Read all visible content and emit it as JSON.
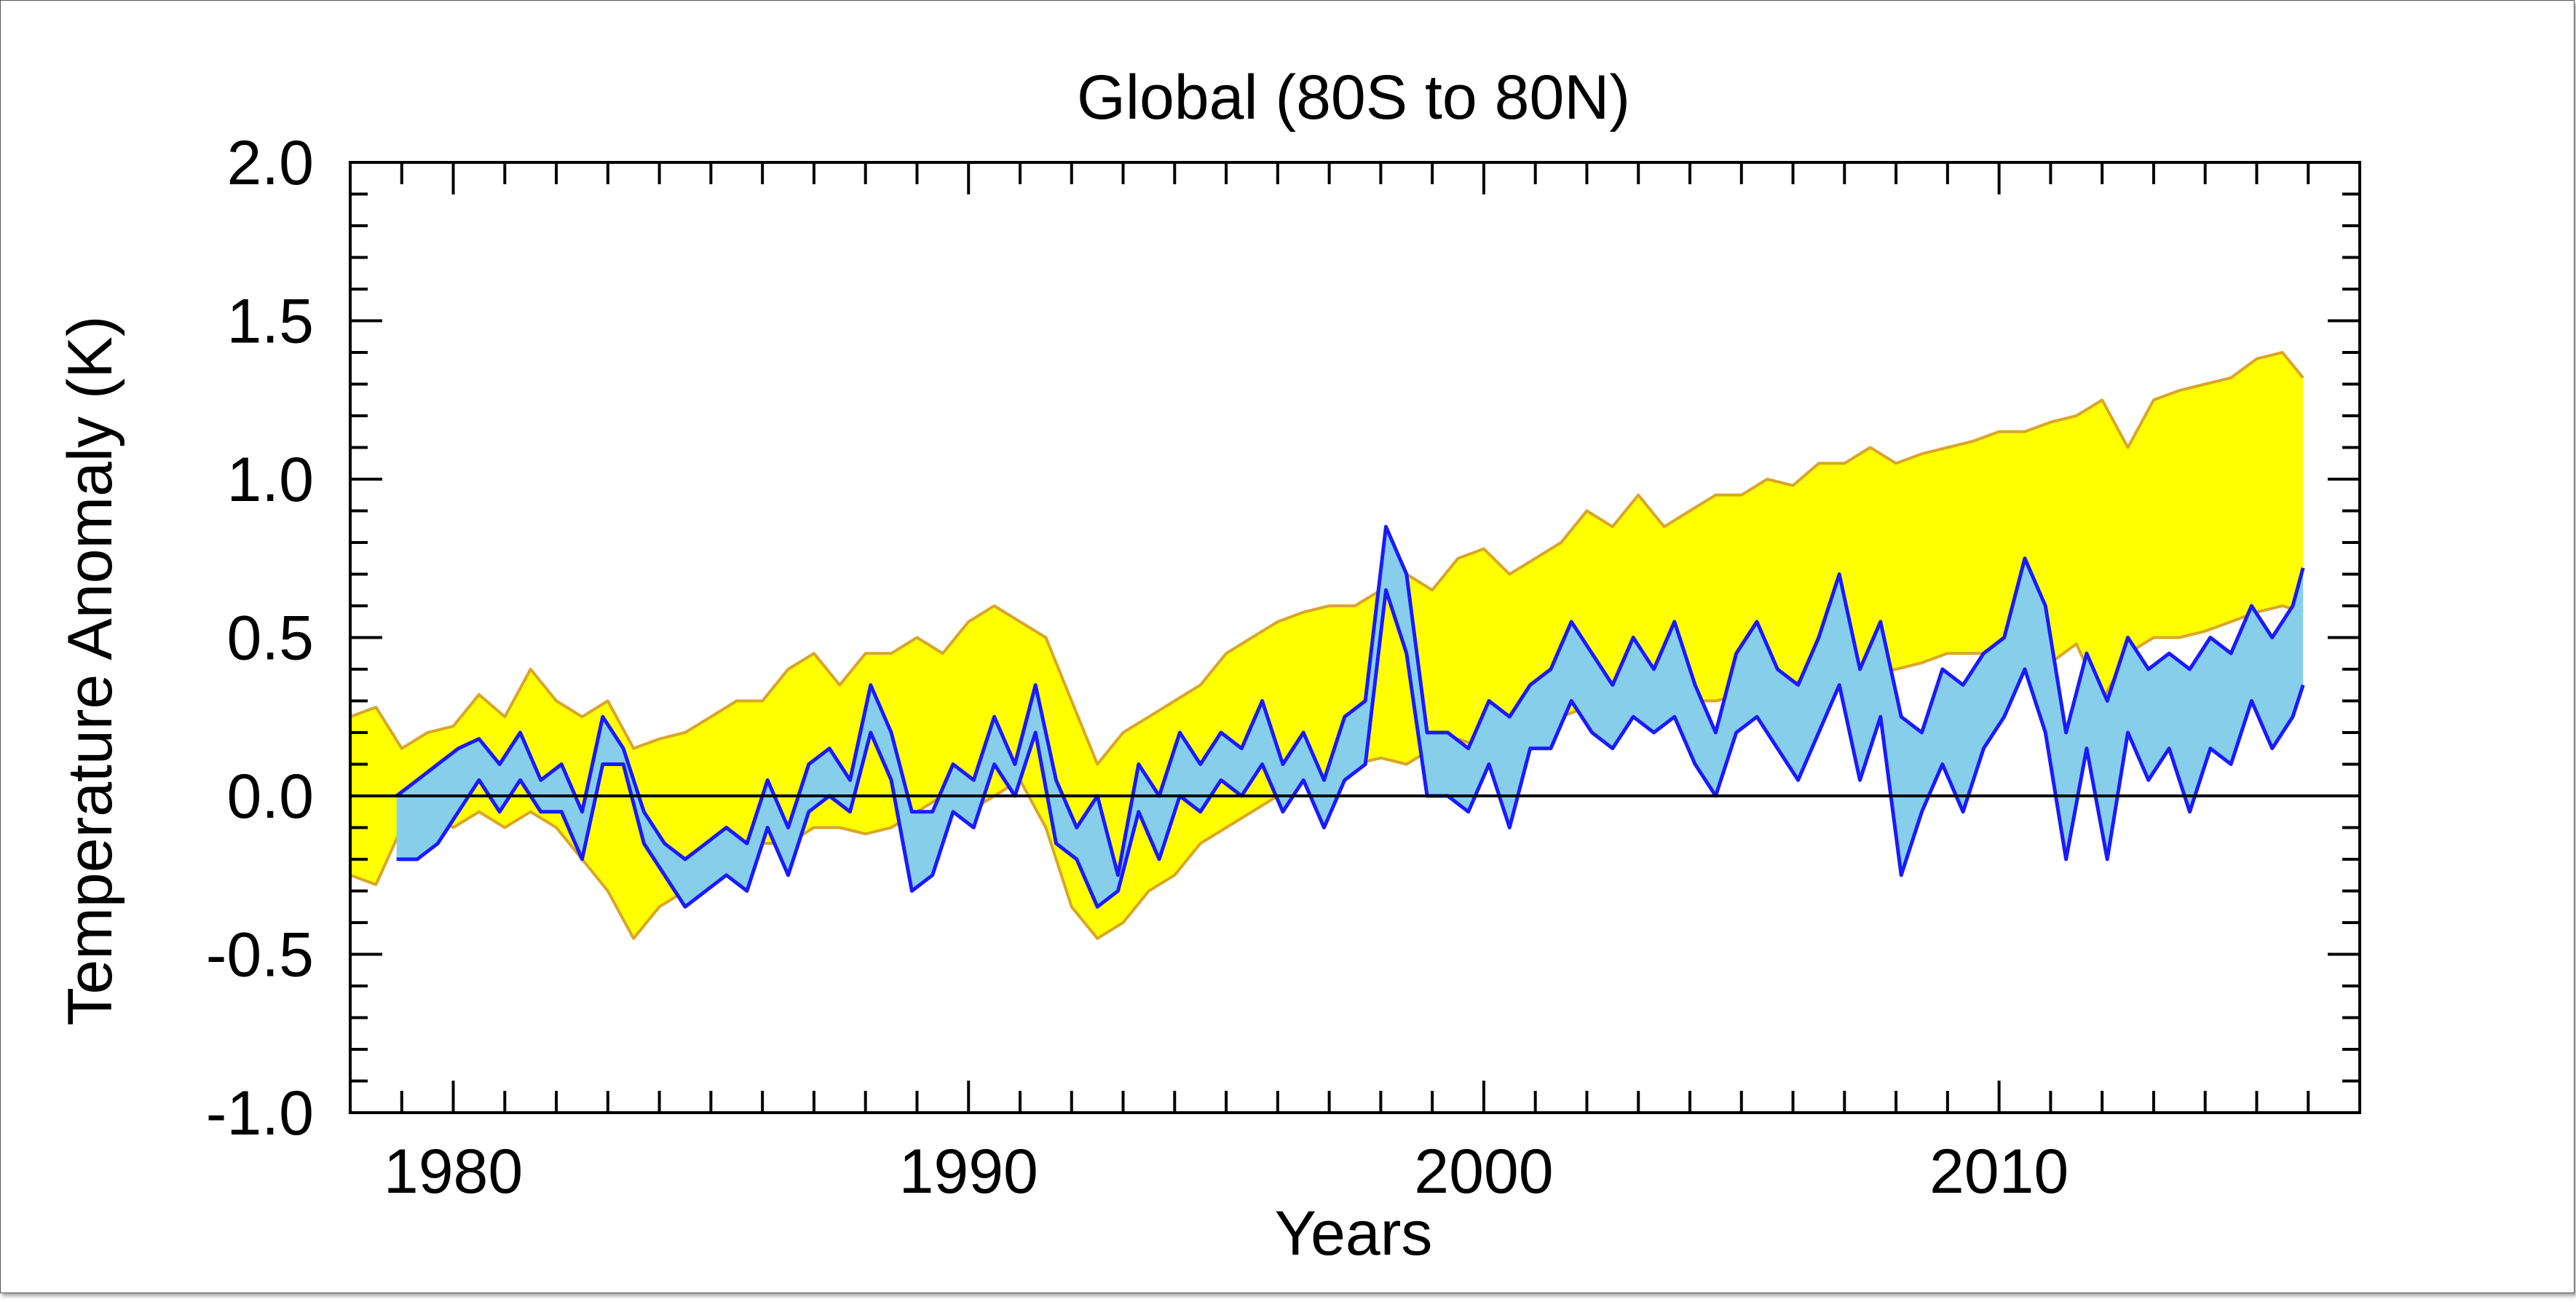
{
  "chart_data": {
    "type": "area",
    "title": "Global (80S to 80N)",
    "xlabel": "Years",
    "ylabel": "Temperature Anomaly (K)",
    "xlim": [
      1978,
      2017
    ],
    "ylim": [
      -1.0,
      2.0
    ],
    "x_ticks": [
      1980,
      1990,
      2000,
      2010
    ],
    "x_tick_labels": [
      "1980",
      "1990",
      "2000",
      "2010"
    ],
    "y_ticks": [
      -1.0,
      -0.5,
      0.0,
      0.5,
      1.0,
      1.5,
      2.0
    ],
    "y_tick_labels": [
      "-1.0",
      "-0.5",
      "0.0",
      "0.5",
      "1.0",
      "1.5",
      "2.0"
    ],
    "zero_line": 0.0,
    "grid": false,
    "legend": "none",
    "colors": {
      "model_fill": "#ffff00",
      "model_edge": "#d9a628",
      "obs_fill": "#87ceeb",
      "obs_edge": "#1a1aff"
    },
    "bands": [
      {
        "style": "model",
        "x": [
          1978.0,
          1978.5,
          1979.0,
          1979.5,
          1980.0,
          1980.5,
          1981.0,
          1981.5,
          1982.0,
          1982.5,
          1983.0,
          1983.5,
          1984.0,
          1984.5,
          1985.0,
          1985.5,
          1986.0,
          1986.5,
          1987.0,
          1987.5,
          1988.0,
          1988.5,
          1989.0,
          1989.5,
          1990.0,
          1990.5,
          1991.0,
          1991.5,
          1992.0,
          1992.5,
          1993.0,
          1993.5,
          1994.0,
          1994.5,
          1995.0,
          1995.5,
          1996.0,
          1996.5,
          1997.0,
          1997.5,
          1998.0,
          1998.5,
          1999.0,
          1999.5,
          2000.0,
          2000.5,
          2001.0,
          2001.5,
          2002.0,
          2002.5,
          2003.0,
          2003.5,
          2004.0,
          2004.5,
          2005.0,
          2005.5,
          2006.0,
          2006.5,
          2007.0,
          2007.5,
          2008.0,
          2008.5,
          2009.0,
          2009.5,
          2010.0,
          2010.5,
          2011.0,
          2011.5,
          2012.0,
          2012.5,
          2013.0,
          2013.5,
          2014.0,
          2014.5,
          2015.0,
          2015.5,
          2015.9
        ],
        "upper": [
          0.25,
          0.28,
          0.15,
          0.2,
          0.22,
          0.32,
          0.25,
          0.4,
          0.3,
          0.25,
          0.3,
          0.15,
          0.18,
          0.2,
          0.25,
          0.3,
          0.3,
          0.4,
          0.45,
          0.35,
          0.45,
          0.45,
          0.5,
          0.45,
          0.55,
          0.6,
          0.55,
          0.5,
          0.3,
          0.1,
          0.2,
          0.25,
          0.3,
          0.35,
          0.45,
          0.5,
          0.55,
          0.58,
          0.6,
          0.6,
          0.65,
          0.7,
          0.65,
          0.75,
          0.78,
          0.7,
          0.75,
          0.8,
          0.9,
          0.85,
          0.95,
          0.85,
          0.9,
          0.95,
          0.95,
          1.0,
          0.98,
          1.05,
          1.05,
          1.1,
          1.05,
          1.08,
          1.1,
          1.12,
          1.15,
          1.15,
          1.18,
          1.2,
          1.25,
          1.1,
          1.25,
          1.28,
          1.3,
          1.32,
          1.38,
          1.4,
          1.32
        ],
        "lower": [
          -0.25,
          -0.28,
          -0.1,
          -0.05,
          -0.1,
          -0.05,
          -0.1,
          -0.05,
          -0.1,
          -0.2,
          -0.3,
          -0.45,
          -0.35,
          -0.3,
          -0.25,
          -0.2,
          -0.15,
          -0.15,
          -0.1,
          -0.1,
          -0.12,
          -0.1,
          -0.05,
          0.0,
          -0.05,
          0.0,
          0.05,
          -0.1,
          -0.35,
          -0.45,
          -0.4,
          -0.3,
          -0.25,
          -0.15,
          -0.1,
          -0.05,
          0.0,
          0.05,
          0.05,
          0.1,
          0.12,
          0.1,
          0.15,
          0.18,
          0.15,
          0.2,
          0.22,
          0.25,
          0.28,
          0.25,
          0.28,
          0.28,
          0.3,
          0.3,
          0.32,
          0.35,
          0.35,
          0.4,
          0.4,
          0.38,
          0.4,
          0.42,
          0.45,
          0.45,
          0.45,
          0.45,
          0.42,
          0.48,
          0.3,
          0.45,
          0.5,
          0.5,
          0.52,
          0.55,
          0.58,
          0.6,
          0.58
        ]
      },
      {
        "style": "observations",
        "x": [
          1978.9,
          1979.3,
          1979.7,
          1980.1,
          1980.5,
          1980.9,
          1981.3,
          1981.7,
          1982.1,
          1982.5,
          1982.9,
          1983.3,
          1983.7,
          1984.1,
          1984.5,
          1984.9,
          1985.3,
          1985.7,
          1986.1,
          1986.5,
          1986.9,
          1987.3,
          1987.7,
          1988.1,
          1988.5,
          1988.9,
          1989.3,
          1989.7,
          1990.1,
          1990.5,
          1990.9,
          1991.3,
          1991.7,
          1992.1,
          1992.5,
          1992.9,
          1993.3,
          1993.7,
          1994.1,
          1994.5,
          1994.9,
          1995.3,
          1995.7,
          1996.1,
          1996.5,
          1996.9,
          1997.3,
          1997.7,
          1998.1,
          1998.5,
          1998.9,
          1999.3,
          1999.7,
          2000.1,
          2000.5,
          2000.9,
          2001.3,
          2001.7,
          2002.1,
          2002.5,
          2002.9,
          2003.3,
          2003.7,
          2004.1,
          2004.5,
          2004.9,
          2005.3,
          2005.7,
          2006.1,
          2006.5,
          2006.9,
          2007.3,
          2007.7,
          2008.1,
          2008.5,
          2008.9,
          2009.3,
          2009.7,
          2010.1,
          2010.5,
          2010.9,
          2011.3,
          2011.7,
          2012.1,
          2012.5,
          2012.9,
          2013.3,
          2013.7,
          2014.1,
          2014.5,
          2014.9,
          2015.3,
          2015.7,
          2015.9
        ],
        "upper": [
          0.0,
          0.05,
          0.1,
          0.15,
          0.18,
          0.1,
          0.2,
          0.05,
          0.1,
          -0.05,
          0.25,
          0.15,
          -0.05,
          -0.15,
          -0.2,
          -0.15,
          -0.1,
          -0.15,
          0.05,
          -0.1,
          0.1,
          0.15,
          0.05,
          0.35,
          0.2,
          -0.05,
          -0.05,
          0.1,
          0.05,
          0.25,
          0.1,
          0.35,
          0.05,
          -0.1,
          0.0,
          -0.25,
          0.1,
          0.0,
          0.2,
          0.1,
          0.2,
          0.15,
          0.3,
          0.1,
          0.2,
          0.05,
          0.25,
          0.3,
          0.85,
          0.7,
          0.2,
          0.2,
          0.15,
          0.3,
          0.25,
          0.35,
          0.4,
          0.55,
          0.45,
          0.35,
          0.5,
          0.4,
          0.55,
          0.35,
          0.2,
          0.45,
          0.55,
          0.4,
          0.35,
          0.5,
          0.7,
          0.4,
          0.55,
          0.25,
          0.2,
          0.4,
          0.35,
          0.45,
          0.5,
          0.75,
          0.6,
          0.2,
          0.45,
          0.3,
          0.5,
          0.4,
          0.45,
          0.4,
          0.5,
          0.45,
          0.6,
          0.5,
          0.6,
          0.72
        ],
        "lower": [
          -0.2,
          -0.2,
          -0.15,
          -0.05,
          0.05,
          -0.05,
          0.05,
          -0.05,
          -0.05,
          -0.2,
          0.1,
          0.1,
          -0.15,
          -0.25,
          -0.35,
          -0.3,
          -0.25,
          -0.3,
          -0.1,
          -0.25,
          -0.05,
          0.0,
          -0.05,
          0.2,
          0.05,
          -0.3,
          -0.25,
          -0.05,
          -0.1,
          0.1,
          0.0,
          0.2,
          -0.15,
          -0.2,
          -0.35,
          -0.3,
          -0.05,
          -0.2,
          0.0,
          -0.05,
          0.05,
          0.0,
          0.1,
          -0.05,
          0.05,
          -0.1,
          0.05,
          0.1,
          0.65,
          0.45,
          0.0,
          0.0,
          -0.05,
          0.1,
          -0.1,
          0.15,
          0.15,
          0.3,
          0.2,
          0.15,
          0.25,
          0.2,
          0.25,
          0.1,
          0.0,
          0.2,
          0.25,
          0.15,
          0.05,
          0.2,
          0.35,
          0.05,
          0.25,
          -0.25,
          -0.05,
          0.1,
          -0.05,
          0.15,
          0.25,
          0.4,
          0.2,
          -0.2,
          0.15,
          -0.2,
          0.2,
          0.05,
          0.15,
          -0.05,
          0.15,
          0.1,
          0.3,
          0.15,
          0.25,
          0.35
        ]
      }
    ]
  }
}
